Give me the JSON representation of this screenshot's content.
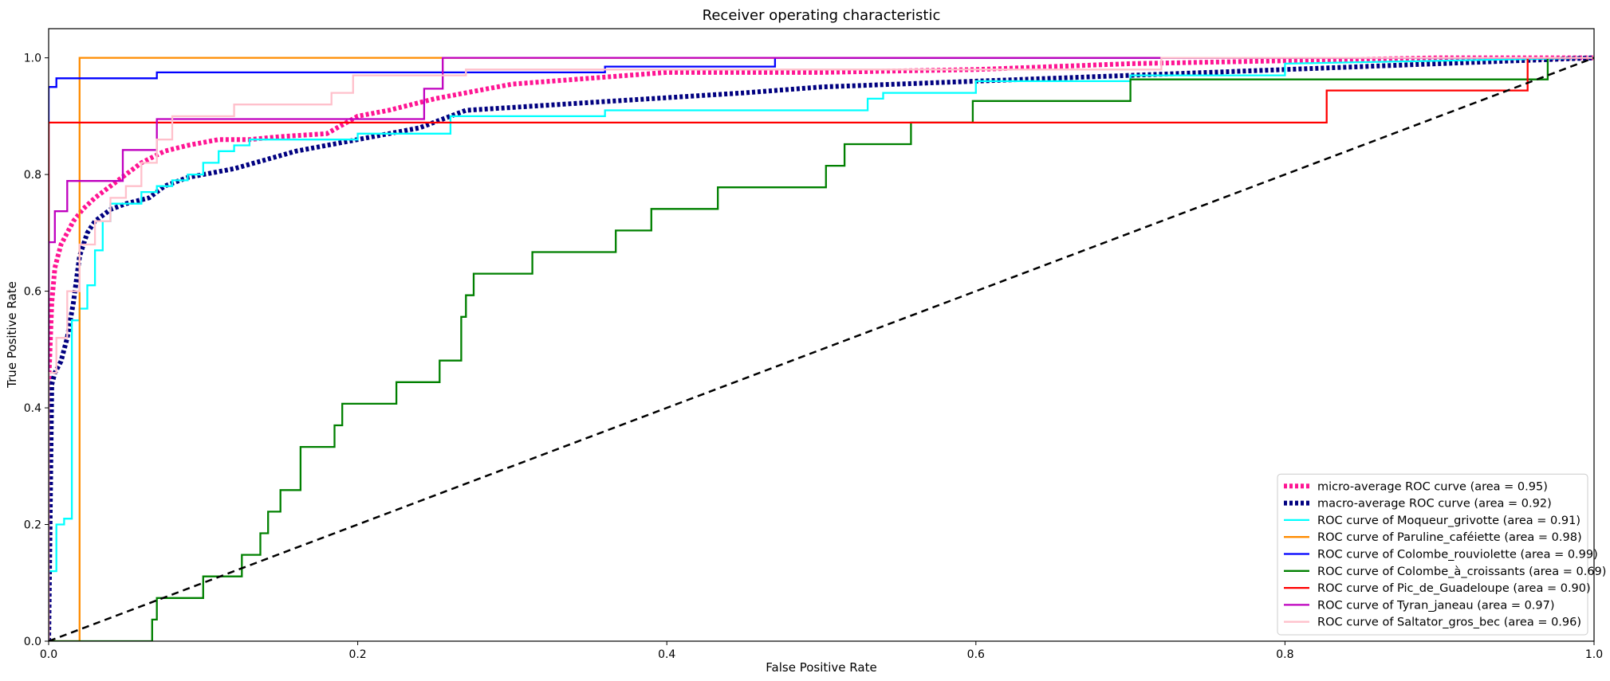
{
  "chart_data": {
    "type": "line",
    "title": "Receiver operating characteristic",
    "xlabel": "False Positive Rate",
    "ylabel": "True Positive Rate",
    "xlim": [
      0.0,
      1.0
    ],
    "ylim": [
      0.0,
      1.05
    ],
    "xticks": [
      "0.0",
      "0.2",
      "0.4",
      "0.6",
      "0.8",
      "1.0"
    ],
    "yticks": [
      "0.0",
      "0.2",
      "0.4",
      "0.6",
      "0.8",
      "1.0"
    ],
    "grid": false,
    "legend_position": "lower right",
    "diagonal": {
      "color": "#000000",
      "style": "dashed"
    },
    "series": [
      {
        "name": "micro-average ROC curve (area = 0.95)",
        "color": "#ff1493",
        "style": "dotted",
        "x": [
          0.0,
          0.0,
          0.002,
          0.004,
          0.006,
          0.008,
          0.012,
          0.016,
          0.022,
          0.03,
          0.04,
          0.05,
          0.06,
          0.075,
          0.09,
          0.11,
          0.13,
          0.15,
          0.18,
          0.2,
          0.22,
          0.25,
          0.28,
          0.3,
          0.35,
          0.4,
          0.5,
          0.6,
          0.7,
          0.8,
          0.9,
          1.0
        ],
        "y": [
          0.0,
          0.44,
          0.58,
          0.64,
          0.66,
          0.68,
          0.7,
          0.72,
          0.74,
          0.76,
          0.78,
          0.8,
          0.82,
          0.84,
          0.85,
          0.86,
          0.86,
          0.865,
          0.87,
          0.9,
          0.91,
          0.93,
          0.945,
          0.955,
          0.965,
          0.975,
          0.975,
          0.98,
          0.99,
          0.995,
          1.0,
          1.0
        ]
      },
      {
        "name": "macro-average ROC curve (area = 0.92)",
        "color": "#000080",
        "style": "dotted",
        "x": [
          0.0,
          0.002,
          0.004,
          0.008,
          0.012,
          0.016,
          0.02,
          0.025,
          0.03,
          0.035,
          0.04,
          0.05,
          0.065,
          0.075,
          0.09,
          0.12,
          0.16,
          0.2,
          0.24,
          0.27,
          0.3,
          0.36,
          0.45,
          0.5,
          0.6,
          0.7,
          0.8,
          0.9,
          1.0
        ],
        "y": [
          0.0,
          0.44,
          0.46,
          0.48,
          0.52,
          0.58,
          0.66,
          0.7,
          0.72,
          0.73,
          0.74,
          0.75,
          0.76,
          0.78,
          0.795,
          0.81,
          0.84,
          0.86,
          0.88,
          0.91,
          0.915,
          0.925,
          0.94,
          0.95,
          0.96,
          0.97,
          0.98,
          0.99,
          1.0
        ]
      },
      {
        "name": "ROC curve of Moqueur_grivotte (area = 0.91)",
        "color": "#00ffff",
        "style": "solid",
        "x": [
          0.0,
          0.0,
          0.005,
          0.005,
          0.01,
          0.01,
          0.015,
          0.015,
          0.02,
          0.02,
          0.025,
          0.025,
          0.03,
          0.03,
          0.035,
          0.035,
          0.04,
          0.04,
          0.06,
          0.06,
          0.07,
          0.07,
          0.08,
          0.08,
          0.09,
          0.09,
          0.1,
          0.1,
          0.11,
          0.11,
          0.12,
          0.12,
          0.13,
          0.13,
          0.2,
          0.2,
          0.26,
          0.26,
          0.36,
          0.36,
          0.53,
          0.53,
          0.54,
          0.54,
          0.6,
          0.6,
          0.7,
          0.7,
          0.8,
          0.8,
          1.0
        ],
        "y": [
          0.0,
          0.12,
          0.12,
          0.2,
          0.2,
          0.21,
          0.21,
          0.55,
          0.55,
          0.57,
          0.57,
          0.61,
          0.61,
          0.67,
          0.67,
          0.72,
          0.72,
          0.75,
          0.75,
          0.77,
          0.77,
          0.78,
          0.78,
          0.79,
          0.79,
          0.8,
          0.8,
          0.82,
          0.82,
          0.84,
          0.84,
          0.85,
          0.85,
          0.86,
          0.86,
          0.87,
          0.87,
          0.9,
          0.9,
          0.91,
          0.91,
          0.93,
          0.93,
          0.94,
          0.94,
          0.96,
          0.96,
          0.97,
          0.97,
          0.99,
          1.0
        ]
      },
      {
        "name": "ROC curve of Paruline_caféiette (area = 0.98)",
        "color": "#ff8c00",
        "style": "solid",
        "x": [
          0.0,
          0.02,
          0.02,
          0.25,
          0.25,
          1.0
        ],
        "y": [
          0.0,
          0.0,
          1.0,
          1.0,
          1.0,
          1.0
        ]
      },
      {
        "name": "ROC curve of Colombe_rouviolette (area = 0.99)",
        "color": "#0000ff",
        "style": "solid",
        "x": [
          0.0,
          0.0,
          0.005,
          0.005,
          0.07,
          0.07,
          0.36,
          0.36,
          0.47,
          0.47,
          1.0
        ],
        "y": [
          0.0,
          0.95,
          0.95,
          0.965,
          0.965,
          0.975,
          0.975,
          0.985,
          0.985,
          1.0,
          1.0
        ]
      },
      {
        "name": "ROC curve of Colombe_à_croissants (area = 0.69)",
        "color": "#008000",
        "style": "solid",
        "x": [
          0.0,
          0.067,
          0.067,
          0.07,
          0.07,
          0.1,
          0.1,
          0.125,
          0.125,
          0.137,
          0.137,
          0.142,
          0.142,
          0.15,
          0.15,
          0.163,
          0.163,
          0.185,
          0.185,
          0.19,
          0.19,
          0.225,
          0.225,
          0.253,
          0.253,
          0.267,
          0.267,
          0.27,
          0.27,
          0.275,
          0.275,
          0.313,
          0.313,
          0.367,
          0.367,
          0.39,
          0.39,
          0.433,
          0.433,
          0.503,
          0.503,
          0.515,
          0.515,
          0.558,
          0.558,
          0.598,
          0.598,
          0.7,
          0.7,
          0.97,
          0.97,
          1.0
        ],
        "y": [
          0.0,
          0.0,
          0.037,
          0.037,
          0.074,
          0.074,
          0.111,
          0.111,
          0.148,
          0.148,
          0.185,
          0.185,
          0.222,
          0.222,
          0.259,
          0.259,
          0.333,
          0.333,
          0.37,
          0.37,
          0.407,
          0.407,
          0.444,
          0.444,
          0.481,
          0.481,
          0.556,
          0.556,
          0.593,
          0.593,
          0.63,
          0.63,
          0.667,
          0.667,
          0.704,
          0.704,
          0.741,
          0.741,
          0.778,
          0.778,
          0.815,
          0.815,
          0.852,
          0.852,
          0.889,
          0.889,
          0.926,
          0.926,
          0.963,
          0.963,
          1.0,
          1.0
        ]
      },
      {
        "name": "ROC curve of Pic_de_Guadeloupe (area = 0.90)",
        "color": "#ff0000",
        "style": "solid",
        "x": [
          0.0,
          0.0,
          0.827,
          0.827,
          0.957,
          0.957,
          1.0
        ],
        "y": [
          0.0,
          0.889,
          0.889,
          0.944,
          0.944,
          1.0,
          1.0
        ]
      },
      {
        "name": "ROC curve of Tyran_janeau (area = 0.97)",
        "color": "#bf00bf",
        "style": "solid",
        "x": [
          0.0,
          0.0,
          0.004,
          0.004,
          0.012,
          0.012,
          0.048,
          0.048,
          0.07,
          0.07,
          0.09,
          0.09,
          0.243,
          0.243,
          0.255,
          0.255,
          1.0
        ],
        "y": [
          0.0,
          0.684,
          0.684,
          0.737,
          0.737,
          0.789,
          0.789,
          0.842,
          0.842,
          0.895,
          0.895,
          0.895,
          0.895,
          0.947,
          0.947,
          1.0,
          1.0
        ]
      },
      {
        "name": "ROC curve of Saltator_gros_bec (area = 0.96)",
        "color": "#ffc0cb",
        "style": "solid",
        "x": [
          0.0,
          0.0,
          0.005,
          0.005,
          0.012,
          0.012,
          0.02,
          0.02,
          0.03,
          0.03,
          0.04,
          0.04,
          0.05,
          0.05,
          0.06,
          0.06,
          0.07,
          0.07,
          0.08,
          0.08,
          0.12,
          0.12,
          0.183,
          0.183,
          0.197,
          0.197,
          0.27,
          0.27,
          0.37,
          0.37,
          0.72,
          0.72,
          1.0
        ],
        "y": [
          0.0,
          0.46,
          0.46,
          0.52,
          0.52,
          0.6,
          0.6,
          0.68,
          0.68,
          0.72,
          0.72,
          0.76,
          0.76,
          0.78,
          0.78,
          0.82,
          0.82,
          0.86,
          0.86,
          0.9,
          0.9,
          0.92,
          0.92,
          0.94,
          0.94,
          0.97,
          0.97,
          0.98,
          0.98,
          0.98,
          0.98,
          1.0,
          1.0
        ]
      }
    ]
  }
}
